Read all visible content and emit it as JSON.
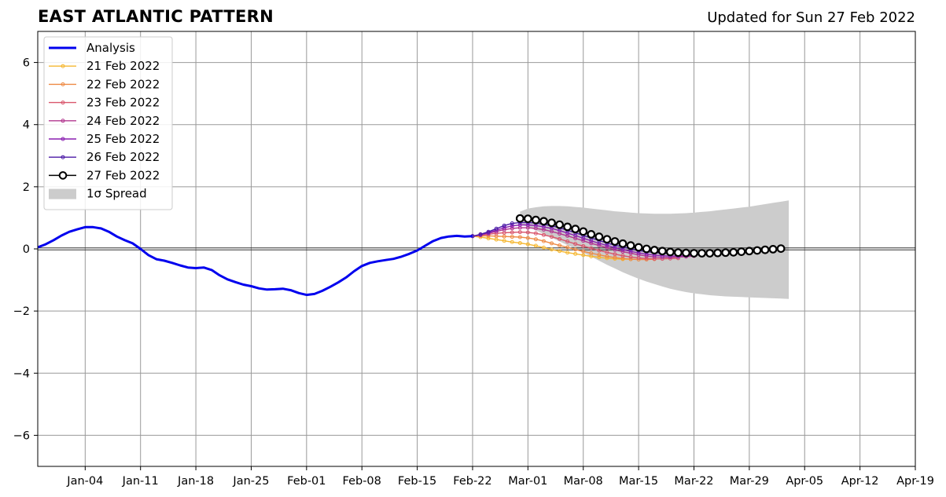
{
  "header": {
    "title": "EAST ATLANTIC PATTERN",
    "updated": "Updated for Sun 27 Feb 2022"
  },
  "chart_data": {
    "type": "line",
    "title": "EAST ATLANTIC PATTERN",
    "subtitle": "Updated for Sun 27 Feb 2022",
    "xlabel": "",
    "ylabel": "",
    "xlim": [
      "2021-12-29",
      "2022-04-19"
    ],
    "ylim": [
      -7,
      7
    ],
    "grid": true,
    "legend_position": "top-left",
    "x_ticks": [
      "Jan-04",
      "Jan-11",
      "Jan-18",
      "Jan-25",
      "Feb-01",
      "Feb-08",
      "Feb-15",
      "Feb-22",
      "Mar-01",
      "Mar-08",
      "Mar-15",
      "Mar-22",
      "Mar-29",
      "Apr-05",
      "Apr-12",
      "Apr-19"
    ],
    "x_tick_dates": [
      "2022-01-04",
      "2022-01-11",
      "2022-01-18",
      "2022-01-25",
      "2022-02-01",
      "2022-02-08",
      "2022-02-15",
      "2022-02-22",
      "2022-03-01",
      "2022-03-08",
      "2022-03-15",
      "2022-03-22",
      "2022-03-29",
      "2022-04-05",
      "2022-04-12",
      "2022-04-19"
    ],
    "y_ticks": [
      "−6",
      "−4",
      "−2",
      "0",
      "2",
      "4",
      "6"
    ],
    "y_tick_values": [
      -6,
      -4,
      -2,
      0,
      2,
      4,
      6
    ],
    "analysis": {
      "name": "Analysis",
      "color": "#0000ee",
      "x": [
        "2021-12-29",
        "2021-12-30",
        "2021-12-31",
        "2022-01-01",
        "2022-01-02",
        "2022-01-03",
        "2022-01-04",
        "2022-01-05",
        "2022-01-06",
        "2022-01-07",
        "2022-01-08",
        "2022-01-09",
        "2022-01-10",
        "2022-01-11",
        "2022-01-12",
        "2022-01-13",
        "2022-01-14",
        "2022-01-15",
        "2022-01-16",
        "2022-01-17",
        "2022-01-18",
        "2022-01-19",
        "2022-01-20",
        "2022-01-21",
        "2022-01-22",
        "2022-01-23",
        "2022-01-24",
        "2022-01-25",
        "2022-01-26",
        "2022-01-27",
        "2022-01-28",
        "2022-01-29",
        "2022-01-30",
        "2022-01-31",
        "2022-02-01",
        "2022-02-02",
        "2022-02-03",
        "2022-02-04",
        "2022-02-05",
        "2022-02-06",
        "2022-02-07",
        "2022-02-08",
        "2022-02-09",
        "2022-02-10",
        "2022-02-11",
        "2022-02-12",
        "2022-02-13",
        "2022-02-14",
        "2022-02-15",
        "2022-02-16",
        "2022-02-17",
        "2022-02-18",
        "2022-02-19",
        "2022-02-20",
        "2022-02-21",
        "2022-02-22"
      ],
      "y": [
        0.05,
        0.15,
        0.28,
        0.43,
        0.55,
        0.63,
        0.7,
        0.7,
        0.66,
        0.55,
        0.4,
        0.28,
        0.18,
        0.0,
        -0.2,
        -0.33,
        -0.38,
        -0.45,
        -0.53,
        -0.6,
        -0.62,
        -0.6,
        -0.68,
        -0.85,
        -0.98,
        -1.07,
        -1.15,
        -1.2,
        -1.27,
        -1.31,
        -1.3,
        -1.28,
        -1.33,
        -1.42,
        -1.48,
        -1.45,
        -1.35,
        -1.22,
        -1.08,
        -0.92,
        -0.72,
        -0.55,
        -0.45,
        -0.4,
        -0.36,
        -0.32,
        -0.25,
        -0.16,
        -0.05,
        0.1,
        0.25,
        0.35,
        0.4,
        0.42,
        0.4,
        0.41
      ]
    },
    "forecasts": [
      {
        "name": "21 Feb 2022",
        "color": "#f5b731",
        "start": "2022-02-22",
        "y": [
          0.41,
          0.38,
          0.34,
          0.3,
          0.26,
          0.22,
          0.19,
          0.15,
          0.1,
          0.04,
          -0.02,
          -0.07,
          -0.12,
          -0.16,
          -0.2,
          -0.24,
          -0.27,
          -0.3,
          -0.32,
          -0.33,
          -0.33
        ]
      },
      {
        "name": "22 Feb 2022",
        "color": "#ee8a44",
        "start": "2022-02-22",
        "y": [
          0.41,
          0.42,
          0.42,
          0.41,
          0.4,
          0.39,
          0.38,
          0.35,
          0.31,
          0.25,
          0.18,
          0.11,
          0.05,
          -0.02,
          -0.08,
          -0.14,
          -0.19,
          -0.24,
          -0.28,
          -0.31,
          -0.33,
          -0.34,
          -0.34,
          -0.33
        ]
      },
      {
        "name": "23 Feb 2022",
        "color": "#d9566c",
        "start": "2022-02-22",
        "y": [
          0.41,
          0.44,
          0.47,
          0.5,
          0.52,
          0.53,
          0.54,
          0.53,
          0.5,
          0.45,
          0.39,
          0.32,
          0.24,
          0.16,
          0.09,
          0.02,
          -0.05,
          -0.11,
          -0.17,
          -0.22,
          -0.26,
          -0.29,
          -0.31,
          -0.32,
          -0.32,
          -0.31,
          -0.3
        ]
      },
      {
        "name": "24 Feb 2022",
        "color": "#b2378f",
        "start": "2022-02-22",
        "y": [
          0.41,
          0.45,
          0.5,
          0.56,
          0.62,
          0.66,
          0.68,
          0.68,
          0.66,
          0.62,
          0.56,
          0.49,
          0.42,
          0.34,
          0.26,
          0.18,
          0.11,
          0.04,
          -0.03,
          -0.09,
          -0.14,
          -0.19,
          -0.23,
          -0.26,
          -0.27,
          -0.27,
          -0.26,
          -0.25,
          -0.23
        ]
      },
      {
        "name": "25 Feb 2022",
        "color": "#8a1fb1",
        "start": "2022-02-22",
        "y": [
          0.41,
          0.46,
          0.52,
          0.6,
          0.68,
          0.74,
          0.77,
          0.77,
          0.75,
          0.71,
          0.66,
          0.59,
          0.51,
          0.43,
          0.34,
          0.26,
          0.18,
          0.11,
          0.04,
          -0.02,
          -0.08,
          -0.13,
          -0.17,
          -0.2,
          -0.22,
          -0.23,
          -0.23,
          -0.22,
          -0.2,
          -0.18
        ]
      },
      {
        "name": "26 Feb 2022",
        "color": "#4b1aa6",
        "start": "2022-02-22",
        "y": [
          0.41,
          0.47,
          0.55,
          0.65,
          0.75,
          0.82,
          0.85,
          0.85,
          0.83,
          0.79,
          0.74,
          0.68,
          0.6,
          0.52,
          0.43,
          0.35,
          0.27,
          0.19,
          0.12,
          0.06,
          0.0,
          -0.05,
          -0.09,
          -0.12,
          -0.14,
          -0.15,
          -0.16,
          -0.16,
          -0.15,
          -0.14,
          -0.12,
          -0.11
        ]
      }
    ],
    "current_forecast": {
      "name": "27 Feb 2022",
      "color": "#000000",
      "start": "2022-02-28",
      "y": [
        0.98,
        0.97,
        0.93,
        0.89,
        0.84,
        0.78,
        0.71,
        0.64,
        0.56,
        0.47,
        0.39,
        0.31,
        0.24,
        0.17,
        0.11,
        0.05,
        0.0,
        -0.04,
        -0.07,
        -0.1,
        -0.12,
        -0.13,
        -0.14,
        -0.14,
        -0.14,
        -0.13,
        -0.12,
        -0.11,
        -0.09,
        -0.07,
        -0.05,
        -0.03,
        -0.01,
        0.01
      ]
    },
    "spread": {
      "name": "1σ Spread",
      "color": "#cccccc",
      "start": "2022-02-28",
      "upper": [
        1.2,
        1.3,
        1.34,
        1.37,
        1.38,
        1.38,
        1.37,
        1.35,
        1.33,
        1.3,
        1.27,
        1.24,
        1.21,
        1.19,
        1.17,
        1.15,
        1.14,
        1.13,
        1.13,
        1.13,
        1.14,
        1.15,
        1.17,
        1.19,
        1.21,
        1.24,
        1.27,
        1.3,
        1.33,
        1.36,
        1.4,
        1.44,
        1.48,
        1.52,
        1.56
      ],
      "lower": [
        0.8,
        0.7,
        0.6,
        0.48,
        0.36,
        0.24,
        0.12,
        0.0,
        -0.12,
        -0.25,
        -0.38,
        -0.51,
        -0.63,
        -0.75,
        -0.86,
        -0.96,
        -1.05,
        -1.13,
        -1.21,
        -1.28,
        -1.34,
        -1.39,
        -1.43,
        -1.46,
        -1.49,
        -1.51,
        -1.53,
        -1.54,
        -1.55,
        -1.56,
        -1.57,
        -1.58,
        -1.59,
        -1.6,
        -1.61
      ]
    }
  }
}
